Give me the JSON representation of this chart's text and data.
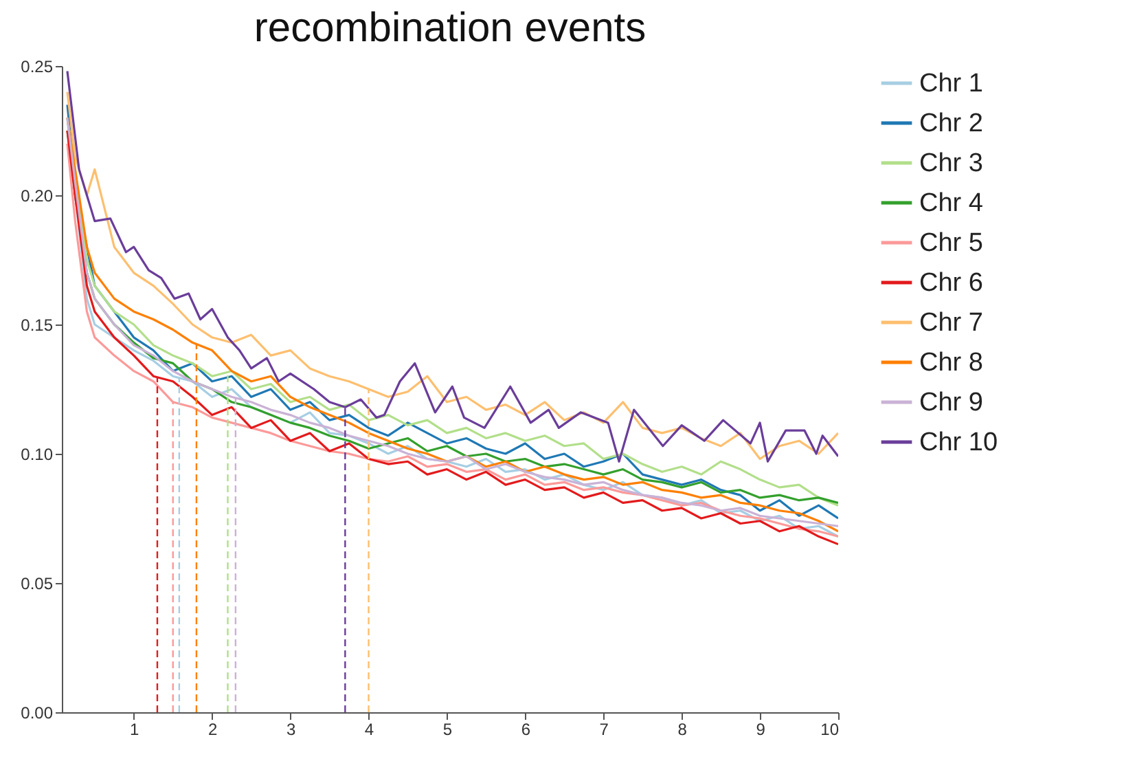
{
  "chart_data": {
    "type": "line",
    "title": "recombination events",
    "x": [
      0.15,
      0.25,
      0.4,
      0.5,
      0.75,
      1,
      1.25,
      1.5,
      1.75,
      2,
      2.25,
      2.5,
      2.75,
      3,
      3.25,
      3.5,
      3.75,
      4,
      4.25,
      4.5,
      4.75,
      5,
      5.25,
      5.5,
      5.75,
      6,
      6.25,
      6.5,
      6.75,
      7,
      7.25,
      7.5,
      7.75,
      8,
      8.25,
      8.5,
      8.75,
      9,
      9.25,
      9.5,
      9.75,
      10
    ],
    "series": [
      {
        "name": "Chr 1",
        "color": "#a6cee3",
        "values": [
          0.23,
          0.2,
          0.16,
          0.15,
          0.145,
          0.14,
          0.136,
          0.13,
          0.128,
          0.122,
          0.125,
          0.118,
          0.115,
          0.112,
          0.116,
          0.108,
          0.107,
          0.104,
          0.1,
          0.103,
          0.098,
          0.097,
          0.095,
          0.098,
          0.093,
          0.094,
          0.09,
          0.092,
          0.088,
          0.086,
          0.089,
          0.084,
          0.083,
          0.08,
          0.082,
          0.077,
          0.078,
          0.074,
          0.076,
          0.071,
          0.072,
          0.068
        ]
      },
      {
        "name": "Chr 2",
        "color": "#1f78b4",
        "values": [
          0.235,
          0.205,
          0.18,
          0.165,
          0.155,
          0.145,
          0.14,
          0.132,
          0.135,
          0.128,
          0.13,
          0.122,
          0.125,
          0.117,
          0.12,
          0.113,
          0.115,
          0.11,
          0.107,
          0.112,
          0.108,
          0.104,
          0.106,
          0.102,
          0.1,
          0.104,
          0.098,
          0.1,
          0.095,
          0.097,
          0.1,
          0.092,
          0.09,
          0.088,
          0.09,
          0.086,
          0.084,
          0.078,
          0.082,
          0.076,
          0.08,
          0.075
        ]
      },
      {
        "name": "Chr 3",
        "color": "#b2df8a",
        "values": [
          0.23,
          0.21,
          0.175,
          0.165,
          0.155,
          0.15,
          0.142,
          0.138,
          0.135,
          0.13,
          0.132,
          0.125,
          0.127,
          0.12,
          0.122,
          0.117,
          0.119,
          0.113,
          0.115,
          0.111,
          0.113,
          0.108,
          0.11,
          0.106,
          0.108,
          0.105,
          0.107,
          0.103,
          0.104,
          0.098,
          0.1,
          0.096,
          0.093,
          0.095,
          0.092,
          0.097,
          0.094,
          0.09,
          0.087,
          0.088,
          0.083,
          0.08
        ]
      },
      {
        "name": "Chr 4",
        "color": "#33a02c",
        "values": [
          0.225,
          0.2,
          0.17,
          0.16,
          0.15,
          0.143,
          0.137,
          0.135,
          0.128,
          0.125,
          0.12,
          0.118,
          0.115,
          0.112,
          0.11,
          0.107,
          0.105,
          0.102,
          0.104,
          0.106,
          0.101,
          0.103,
          0.099,
          0.1,
          0.097,
          0.098,
          0.095,
          0.096,
          0.094,
          0.092,
          0.094,
          0.09,
          0.089,
          0.087,
          0.089,
          0.085,
          0.086,
          0.083,
          0.084,
          0.082,
          0.083,
          0.081
        ]
      },
      {
        "name": "Chr 5",
        "color": "#fb9a99",
        "values": [
          0.22,
          0.19,
          0.155,
          0.145,
          0.138,
          0.132,
          0.128,
          0.12,
          0.118,
          0.114,
          0.112,
          0.11,
          0.108,
          0.105,
          0.103,
          0.101,
          0.1,
          0.098,
          0.097,
          0.099,
          0.095,
          0.096,
          0.093,
          0.094,
          0.09,
          0.092,
          0.088,
          0.089,
          0.086,
          0.087,
          0.085,
          0.084,
          0.082,
          0.08,
          0.081,
          0.078,
          0.076,
          0.075,
          0.073,
          0.071,
          0.07,
          0.068
        ]
      },
      {
        "name": "Chr 6",
        "color": "#e31a1c",
        "values": [
          0.225,
          0.2,
          0.165,
          0.155,
          0.145,
          0.138,
          0.13,
          0.128,
          0.122,
          0.115,
          0.118,
          0.11,
          0.113,
          0.105,
          0.108,
          0.101,
          0.104,
          0.098,
          0.096,
          0.097,
          0.092,
          0.094,
          0.09,
          0.093,
          0.088,
          0.09,
          0.086,
          0.087,
          0.083,
          0.085,
          0.081,
          0.082,
          0.078,
          0.079,
          0.075,
          0.077,
          0.073,
          0.074,
          0.07,
          0.072,
          0.068,
          0.065
        ]
      },
      {
        "name": "Chr 7",
        "color": "#fdbf6f",
        "values": [
          0.24,
          0.215,
          0.2,
          0.21,
          0.18,
          0.17,
          0.165,
          0.158,
          0.15,
          0.145,
          0.143,
          0.146,
          0.138,
          0.14,
          0.133,
          0.13,
          0.128,
          0.125,
          0.122,
          0.124,
          0.13,
          0.12,
          0.122,
          0.117,
          0.119,
          0.115,
          0.12,
          0.113,
          0.116,
          0.112,
          0.12,
          0.11,
          0.108,
          0.11,
          0.106,
          0.103,
          0.108,
          0.098,
          0.103,
          0.105,
          0.1,
          0.108
        ]
      },
      {
        "name": "Chr 8",
        "color": "#ff7f00",
        "values": [
          0.23,
          0.21,
          0.18,
          0.17,
          0.16,
          0.155,
          0.152,
          0.148,
          0.143,
          0.14,
          0.132,
          0.128,
          0.13,
          0.122,
          0.118,
          0.115,
          0.112,
          0.108,
          0.105,
          0.102,
          0.1,
          0.097,
          0.099,
          0.095,
          0.097,
          0.093,
          0.095,
          0.092,
          0.09,
          0.091,
          0.088,
          0.089,
          0.086,
          0.085,
          0.083,
          0.084,
          0.081,
          0.08,
          0.078,
          0.077,
          0.074,
          0.07
        ]
      },
      {
        "name": "Chr 9",
        "color": "#cab2d6",
        "values": [
          0.23,
          0.205,
          0.17,
          0.16,
          0.15,
          0.142,
          0.138,
          0.132,
          0.128,
          0.125,
          0.122,
          0.12,
          0.117,
          0.115,
          0.112,
          0.11,
          0.107,
          0.105,
          0.103,
          0.1,
          0.098,
          0.097,
          0.099,
          0.094,
          0.096,
          0.093,
          0.091,
          0.09,
          0.088,
          0.089,
          0.086,
          0.084,
          0.083,
          0.081,
          0.08,
          0.078,
          0.079,
          0.076,
          0.075,
          0.074,
          0.073,
          0.072
        ]
      },
      {
        "name": "Chr 10",
        "color": "#6a3d9a",
        "x": [
          0.15,
          0.3,
          0.5,
          0.7,
          0.9,
          1.0,
          1.19,
          1.35,
          1.52,
          1.7,
          1.85,
          2.0,
          2.2,
          2.35,
          2.5,
          2.7,
          2.85,
          3.0,
          3.3,
          3.5,
          3.7,
          3.9,
          4.1,
          4.2,
          4.4,
          4.59,
          4.85,
          5.07,
          5.22,
          5.48,
          5.81,
          6.07,
          6.3,
          6.43,
          6.71,
          7.06,
          7.2,
          7.39,
          7.76,
          8.0,
          8.29,
          8.53,
          8.88,
          9.0,
          9.1,
          9.33,
          9.57,
          9.72,
          9.8,
          10
        ],
        "values": [
          0.248,
          0.21,
          0.19,
          0.191,
          0.178,
          0.18,
          0.171,
          0.168,
          0.16,
          0.162,
          0.152,
          0.156,
          0.145,
          0.14,
          0.133,
          0.137,
          0.128,
          0.131,
          0.125,
          0.12,
          0.118,
          0.121,
          0.114,
          0.115,
          0.128,
          0.135,
          0.116,
          0.126,
          0.114,
          0.11,
          0.126,
          0.112,
          0.117,
          0.11,
          0.116,
          0.112,
          0.097,
          0.117,
          0.103,
          0.111,
          0.105,
          0.113,
          0.104,
          0.112,
          0.097,
          0.109,
          0.109,
          0.1,
          0.107,
          0.099
        ]
      }
    ],
    "ref_lines": [
      {
        "axis": "x",
        "value": 1.3,
        "color": "#e31a1c",
        "line_style": "dashed"
      },
      {
        "axis": "x",
        "value": 1.5,
        "color": "#fb9a99",
        "line_style": "dashed"
      },
      {
        "axis": "x",
        "value": 1.58,
        "color": "#a6cee3",
        "line_style": "dashed"
      },
      {
        "axis": "x",
        "value": 1.8,
        "color": "#ff7f00",
        "line_style": "dashed"
      },
      {
        "axis": "x",
        "value": 2.2,
        "color": "#b2df8a",
        "line_style": "dashed"
      },
      {
        "axis": "x",
        "value": 2.3,
        "color": "#cab2d6",
        "line_style": "dashed"
      },
      {
        "axis": "x",
        "value": 3.7,
        "color": "#6a3d9a",
        "line_style": "dashed"
      },
      {
        "axis": "x",
        "value": 4.0,
        "color": "#fdbf6f",
        "line_style": "dashed"
      }
    ],
    "xlim": [
      0.08,
      10
    ],
    "ylim": [
      0,
      0.25
    ],
    "xticks": [
      1,
      2,
      3,
      4,
      5,
      6,
      7,
      8,
      9,
      10
    ],
    "yticks": [
      {
        "value": 0,
        "label": "0.00"
      },
      {
        "value": 0.05,
        "label": "0.05"
      },
      {
        "value": 0.1,
        "label": "0.10"
      },
      {
        "value": 0.15,
        "label": "0.15"
      },
      {
        "value": 0.2,
        "label": "0.20"
      },
      {
        "value": 0.25,
        "label": "0.25"
      }
    ],
    "legend": "right",
    "grid": false,
    "line_style": "solid",
    "marker": "none"
  }
}
